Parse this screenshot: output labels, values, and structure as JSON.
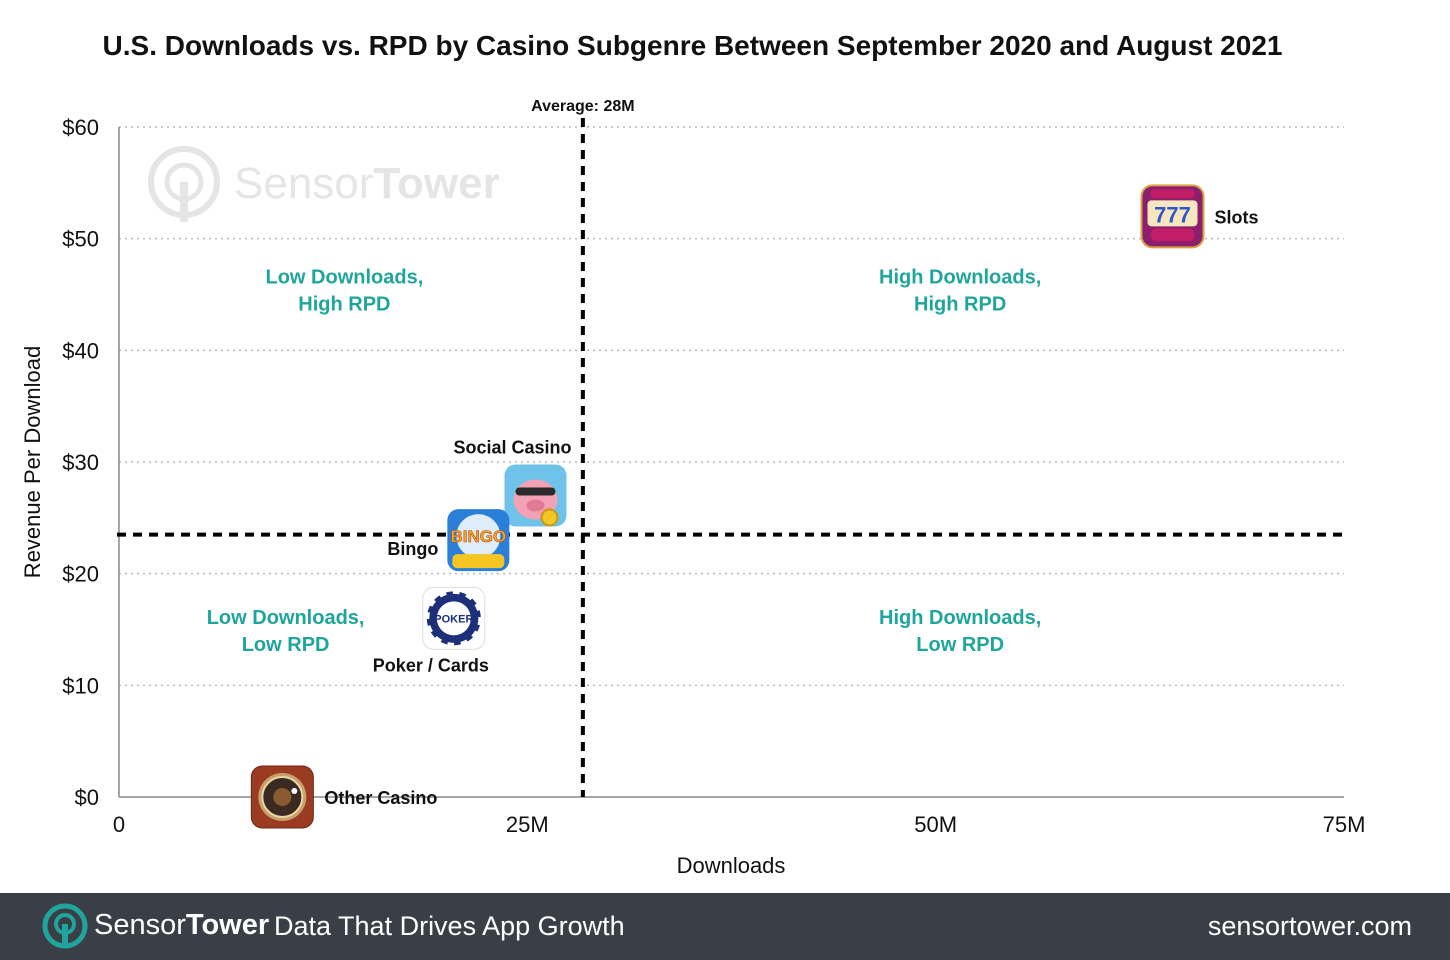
{
  "chart_data": {
    "type": "scatter",
    "title": "U.S. Downloads vs. RPD by Casino Subgenre Between September 2020 and August 2021",
    "xlabel": "Downloads",
    "ylabel": "Revenue Per Download",
    "xlim": [
      0,
      75
    ],
    "ylim": [
      0,
      60
    ],
    "x_unit": "M",
    "y_unit": "$",
    "x_ticks": [
      {
        "value": 0,
        "label": "0"
      },
      {
        "value": 25,
        "label": "25M"
      },
      {
        "value": 50,
        "label": "50M"
      },
      {
        "value": 75,
        "label": "75M"
      }
    ],
    "y_ticks": [
      {
        "value": 0,
        "label": "$0"
      },
      {
        "value": 10,
        "label": "$10"
      },
      {
        "value": 20,
        "label": "$20"
      },
      {
        "value": 30,
        "label": "$30"
      },
      {
        "value": 40,
        "label": "$40"
      },
      {
        "value": 50,
        "label": "$50"
      },
      {
        "value": 60,
        "label": "$60"
      }
    ],
    "grid": "horizontal dotted",
    "points": [
      {
        "name": "Slots",
        "x": 64.5,
        "y": 52,
        "icon": "slotomania-icon",
        "label_side": "right"
      },
      {
        "name": "Social Casino",
        "x": 25.5,
        "y": 27,
        "icon": "coin-master-icon",
        "label_side": "top"
      },
      {
        "name": "Bingo",
        "x": 22,
        "y": 23,
        "icon": "bingo-blitz-icon",
        "label_side": "left"
      },
      {
        "name": "Poker / Cards",
        "x": 20.5,
        "y": 16,
        "icon": "wsop-poker-icon",
        "label_side": "bottom"
      },
      {
        "name": "Other Casino",
        "x": 10,
        "y": 0,
        "icon": "roulette-icon",
        "label_side": "right"
      }
    ],
    "reference_lines": {
      "vertical": {
        "x": 28.4,
        "label": "Average: 28M"
      },
      "horizontal": {
        "y": 23.5
      }
    },
    "quadrant_labels": [
      {
        "lines": [
          "Low Downloads,",
          "High RPD"
        ],
        "x": 13.8,
        "y": 46
      },
      {
        "lines": [
          "High Downloads,",
          "High RPD"
        ],
        "x": 51.5,
        "y": 46
      },
      {
        "lines": [
          "Low Downloads,",
          "Low RPD"
        ],
        "x": 10.2,
        "y": 15.5
      },
      {
        "lines": [
          "High Downloads,",
          "Low RPD"
        ],
        "x": 51.5,
        "y": 15.5
      }
    ],
    "colors": {
      "quadrant_text": "#1fa59b",
      "reference_line": "#000000",
      "grid": "#b8b8b8"
    }
  },
  "watermark": {
    "brand_light": "Sensor",
    "brand_bold": "Tower"
  },
  "footer": {
    "brand_light": "Sensor",
    "brand_bold": "Tower",
    "tagline": "Data That Drives App Growth",
    "url": "sensortower.com",
    "background": "#3a3f47",
    "accent": "#1fa59b"
  }
}
